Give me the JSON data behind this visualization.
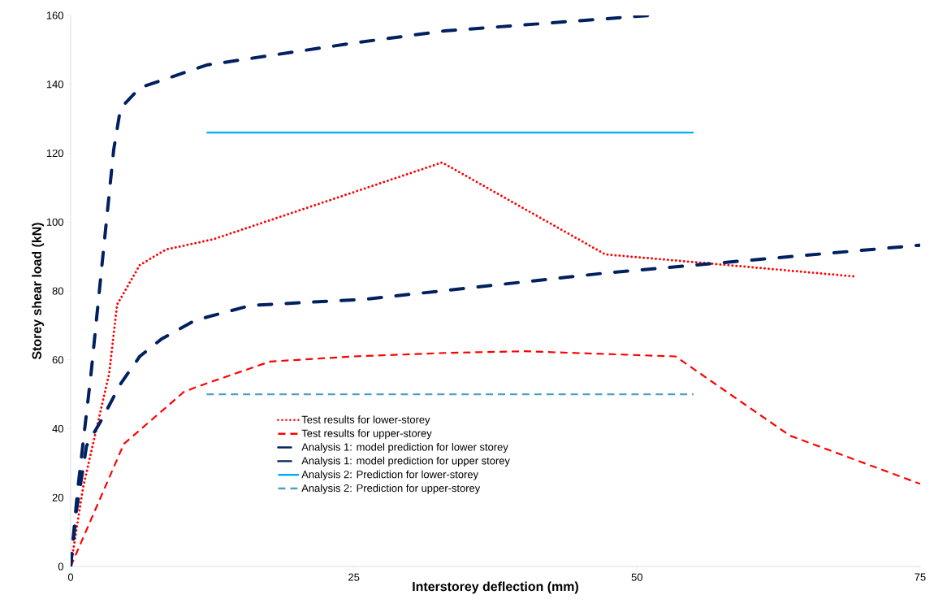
{
  "chart_data": {
    "type": "line",
    "xlabel": "Interstorey deflection (mm)",
    "ylabel": "Storey shear load (kN)",
    "xlim": [
      0,
      75
    ],
    "ylim": [
      0,
      160
    ],
    "xticks": [
      0,
      25,
      50,
      75
    ],
    "yticks": [
      0,
      20,
      40,
      60,
      80,
      100,
      120,
      140,
      160
    ],
    "grid": false,
    "legend": "bottom",
    "marker": "none",
    "series": [
      {
        "name": "Test results for lower-storey",
        "color": "#ff0000",
        "line_style": "dotted",
        "x": [
          0,
          1.1,
          3.4,
          4.1,
          6.1,
          8.4,
          12.6,
          32.8,
          47.2,
          55.3,
          69.2
        ],
        "values": [
          0,
          23,
          56,
          76,
          87.5,
          92,
          95,
          117.3,
          90.6,
          88.3,
          84.2
        ]
      },
      {
        "name": "Test results for upper-storey",
        "color": "#ff0000",
        "line_style": "dashed",
        "x": [
          0,
          4.7,
          10,
          11,
          17.6,
          25,
          33,
          40,
          53.4,
          63.5,
          75
        ],
        "values": [
          0,
          35.6,
          50.7,
          52,
          59.5,
          61,
          62,
          62.5,
          61,
          38,
          24
        ]
      },
      {
        "name": "Analysis 1: model prediction for lower storey",
        "color": "#002060",
        "line_style": "dashdot",
        "x": [
          0,
          0.6,
          1.8,
          2.8,
          3.8,
          4.4,
          6.1,
          12,
          25,
          33,
          51.1
        ],
        "values": [
          0,
          21.7,
          56,
          88.7,
          121,
          133,
          139,
          145.6,
          152,
          155.5,
          160
        ]
      },
      {
        "name": "Analysis 1: model prediction for upper storey",
        "color": "#002060",
        "line_style": "dashdot",
        "x": [
          0,
          0.5,
          1.4,
          2.8,
          4.4,
          6.1,
          8,
          11,
          15.9,
          26,
          47.2,
          75
        ],
        "values": [
          0,
          16,
          35,
          43,
          53,
          61,
          66,
          71.5,
          75.8,
          77.6,
          85.2,
          93.3
        ]
      },
      {
        "name": "Analysis 2: Prediction for lower-storey",
        "color": "#00b0f0",
        "line_style": "solid",
        "x": [
          12,
          55
        ],
        "values": [
          126,
          126
        ]
      },
      {
        "name": "Analysis 2: Prediction for upper-storey",
        "color": "#4aa3c0",
        "line_style": "dashed",
        "x": [
          12,
          55
        ],
        "values": [
          50,
          50
        ]
      }
    ]
  }
}
